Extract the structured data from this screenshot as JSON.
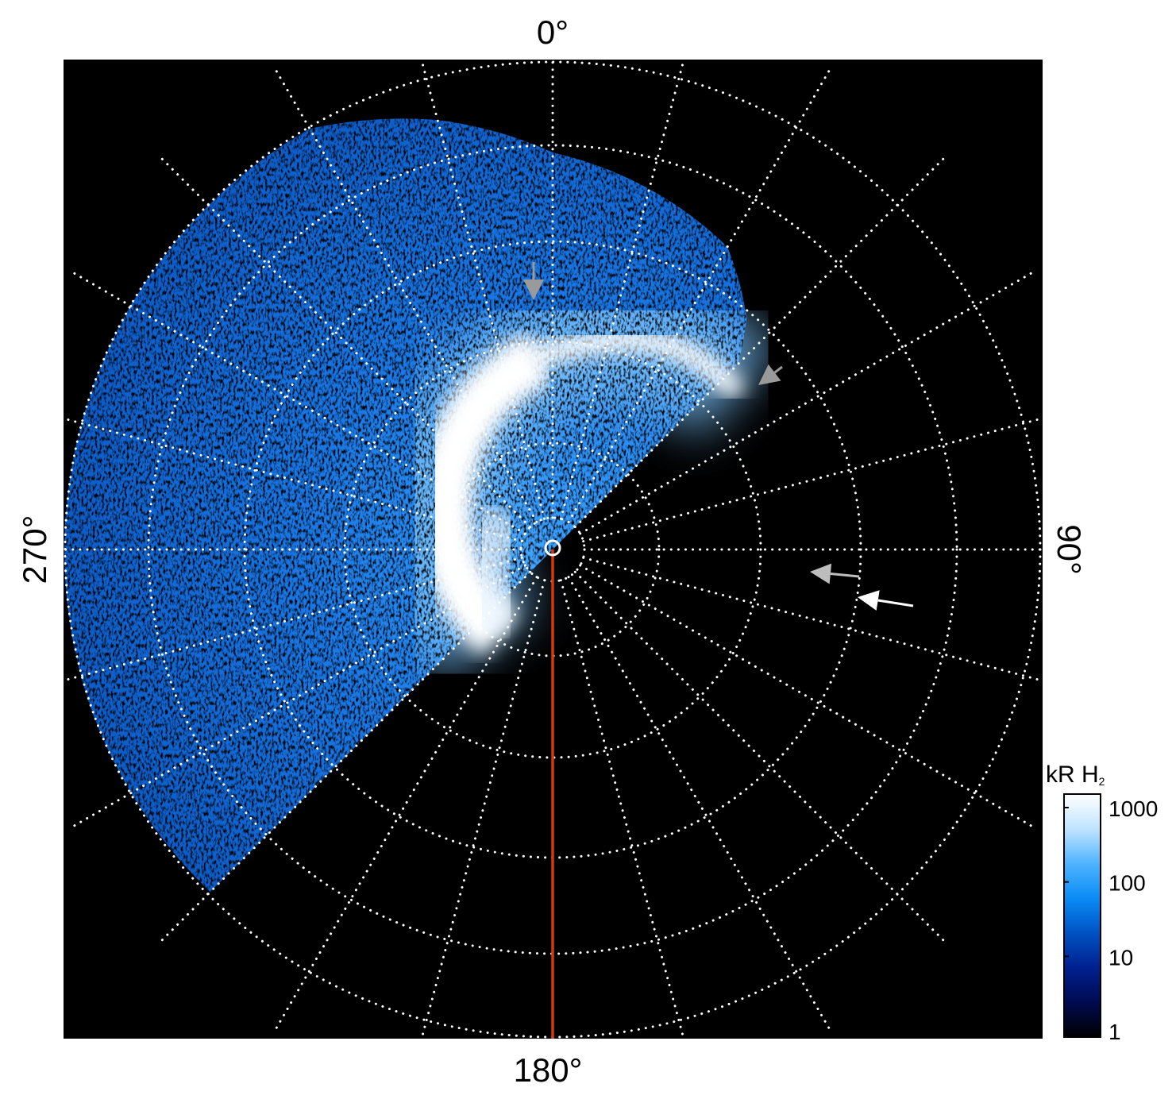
{
  "chart_data": {
    "type": "heatmap",
    "projection": "polar",
    "angle_labels": {
      "top": "0°",
      "right": "90°",
      "bottom": "180°",
      "left": "270°"
    },
    "grid": true,
    "radial_spoke_step_deg": 15,
    "colorbar": {
      "title": "kR H",
      "title_subscript": "2",
      "scale": "log",
      "range": [
        1,
        1000
      ],
      "ticks": [
        "1",
        "10",
        "100",
        "1000"
      ],
      "colors": [
        "#000000",
        "#000a50",
        "#00208f",
        "#0052c4",
        "#0a8cf5",
        "#4fb4ff",
        "#c0e4ff",
        "#ffffff"
      ]
    },
    "annotations": {
      "reference_line_color": "#d03a10",
      "arrows": [
        {
          "color": "#9a9a9a",
          "direction": "down"
        },
        {
          "color": "#9a9a9a",
          "direction": "down-left"
        },
        {
          "color": "#bdbdbd",
          "direction": "left"
        },
        {
          "color": "#ffffff",
          "direction": "left"
        }
      ]
    }
  }
}
